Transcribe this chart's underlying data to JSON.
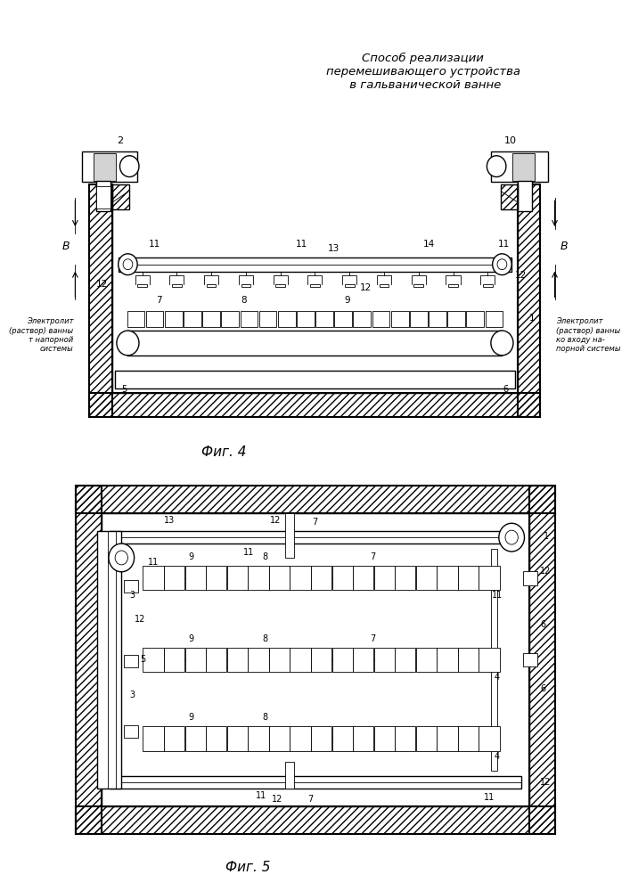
{
  "title": "Способ реализации\nперемешивающего устройства\n в гальванической ванне",
  "fig4_label": "Фиг. 4",
  "fig5_label": "Фиг. 5",
  "bg_color": "#ffffff",
  "line_color": "#000000"
}
